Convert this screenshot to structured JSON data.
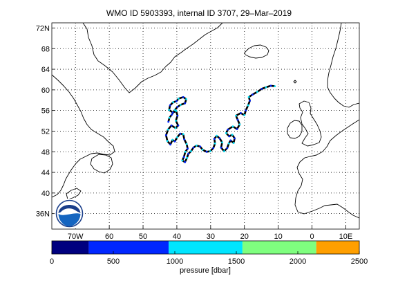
{
  "title": "WMO ID 5903393, internal ID 3707, 29–Mar–2019",
  "map": {
    "lat_labels": [
      "72N",
      "68",
      "64",
      "60",
      "56",
      "52",
      "48",
      "44",
      "40",
      "36N"
    ],
    "lat_values": [
      72,
      68,
      64,
      60,
      56,
      52,
      48,
      44,
      40,
      36
    ],
    "lon_labels": [
      "70W",
      "60",
      "50",
      "40",
      "30",
      "20",
      "10",
      "0",
      "10E"
    ],
    "lon_values": [
      -70,
      -60,
      -50,
      -40,
      -30,
      -20,
      -10,
      0,
      10
    ],
    "lon_range": [
      -77,
      14
    ],
    "lat_range": [
      33,
      73
    ],
    "grid": "dotted",
    "logo": "noaa-logo",
    "colors": {
      "coast": "#000000",
      "track": "#000000"
    }
  },
  "float_track": [
    [
      -42.5,
      53.8
    ],
    [
      -42.2,
      54.6
    ],
    [
      -41.5,
      55.2
    ],
    [
      -40.6,
      56.1
    ],
    [
      -39.8,
      56.7
    ],
    [
      -38.9,
      57.1
    ],
    [
      -37.6,
      57.4
    ],
    [
      -37.2,
      58.2
    ],
    [
      -38.1,
      58.6
    ],
    [
      -39.5,
      58.3
    ],
    [
      -40.1,
      57.8
    ],
    [
      -41.1,
      57.6
    ],
    [
      -42.0,
      57.0
    ],
    [
      -42.3,
      56.1
    ],
    [
      -41.2,
      55.6
    ],
    [
      -40.2,
      55.9
    ],
    [
      -39.8,
      55.0
    ],
    [
      -40.3,
      54.0
    ],
    [
      -39.6,
      53.1
    ],
    [
      -40.4,
      52.6
    ],
    [
      -41.6,
      53.1
    ],
    [
      -42.6,
      52.3
    ],
    [
      -43.2,
      51.2
    ],
    [
      -42.8,
      50.1
    ],
    [
      -41.9,
      49.4
    ],
    [
      -41.3,
      50.3
    ],
    [
      -40.6,
      50.0
    ],
    [
      -39.9,
      50.8
    ],
    [
      -39.0,
      51.5
    ],
    [
      -38.1,
      51.4
    ],
    [
      -37.8,
      50.4
    ],
    [
      -37.1,
      49.5
    ],
    [
      -36.8,
      48.6
    ],
    [
      -37.5,
      48.0
    ],
    [
      -37.9,
      47.0
    ],
    [
      -38.4,
      46.3
    ],
    [
      -37.6,
      46.0
    ],
    [
      -37.0,
      46.8
    ],
    [
      -36.6,
      47.6
    ],
    [
      -35.8,
      48.1
    ],
    [
      -35.1,
      48.8
    ],
    [
      -34.2,
      49.2
    ],
    [
      -33.1,
      49.0
    ],
    [
      -32.4,
      48.4
    ],
    [
      -31.2,
      48.0
    ],
    [
      -30.1,
      48.1
    ],
    [
      -29.2,
      48.7
    ],
    [
      -28.7,
      49.6
    ],
    [
      -28.9,
      50.5
    ],
    [
      -28.2,
      51.1
    ],
    [
      -27.3,
      50.6
    ],
    [
      -26.6,
      49.8
    ],
    [
      -26.9,
      48.8
    ],
    [
      -26.0,
      48.1
    ],
    [
      -25.1,
      48.7
    ],
    [
      -24.6,
      49.6
    ],
    [
      -24.1,
      50.2
    ],
    [
      -23.2,
      49.7
    ],
    [
      -22.9,
      50.6
    ],
    [
      -23.6,
      51.3
    ],
    [
      -24.5,
      51.0
    ],
    [
      -25.4,
      51.6
    ],
    [
      -24.9,
      52.3
    ],
    [
      -23.4,
      52.9
    ],
    [
      -22.2,
      52.4
    ],
    [
      -21.4,
      53.3
    ],
    [
      -22.0,
      54.2
    ],
    [
      -22.5,
      55.0
    ],
    [
      -21.1,
      55.5
    ],
    [
      -20.0,
      55.1
    ],
    [
      -19.6,
      56.0
    ],
    [
      -18.9,
      57.0
    ],
    [
      -18.4,
      57.9
    ],
    [
      -18.7,
      58.6
    ],
    [
      -17.6,
      59.1
    ],
    [
      -16.2,
      59.6
    ],
    [
      -14.9,
      60.2
    ],
    [
      -13.6,
      60.5
    ],
    [
      -12.2,
      60.8
    ],
    [
      -11.0,
      60.7
    ]
  ],
  "colorbar": {
    "ticks": [
      0,
      500,
      1000,
      1500,
      2000,
      2500
    ],
    "tick_labels": [
      "0",
      "500",
      "1000",
      "1500",
      "2000",
      "2500"
    ],
    "label": "pressure [dbar]",
    "bins": [
      {
        "range": [
          0,
          300
        ],
        "color": "#00007f"
      },
      {
        "range": [
          300,
          950
        ],
        "color": "#0026ff"
      },
      {
        "range": [
          950,
          1550
        ],
        "color": "#00e5ff"
      },
      {
        "range": [
          1550,
          2150
        ],
        "color": "#7fff7f"
      },
      {
        "range": [
          2150,
          2500
        ],
        "color": "#ff9f00"
      }
    ]
  }
}
